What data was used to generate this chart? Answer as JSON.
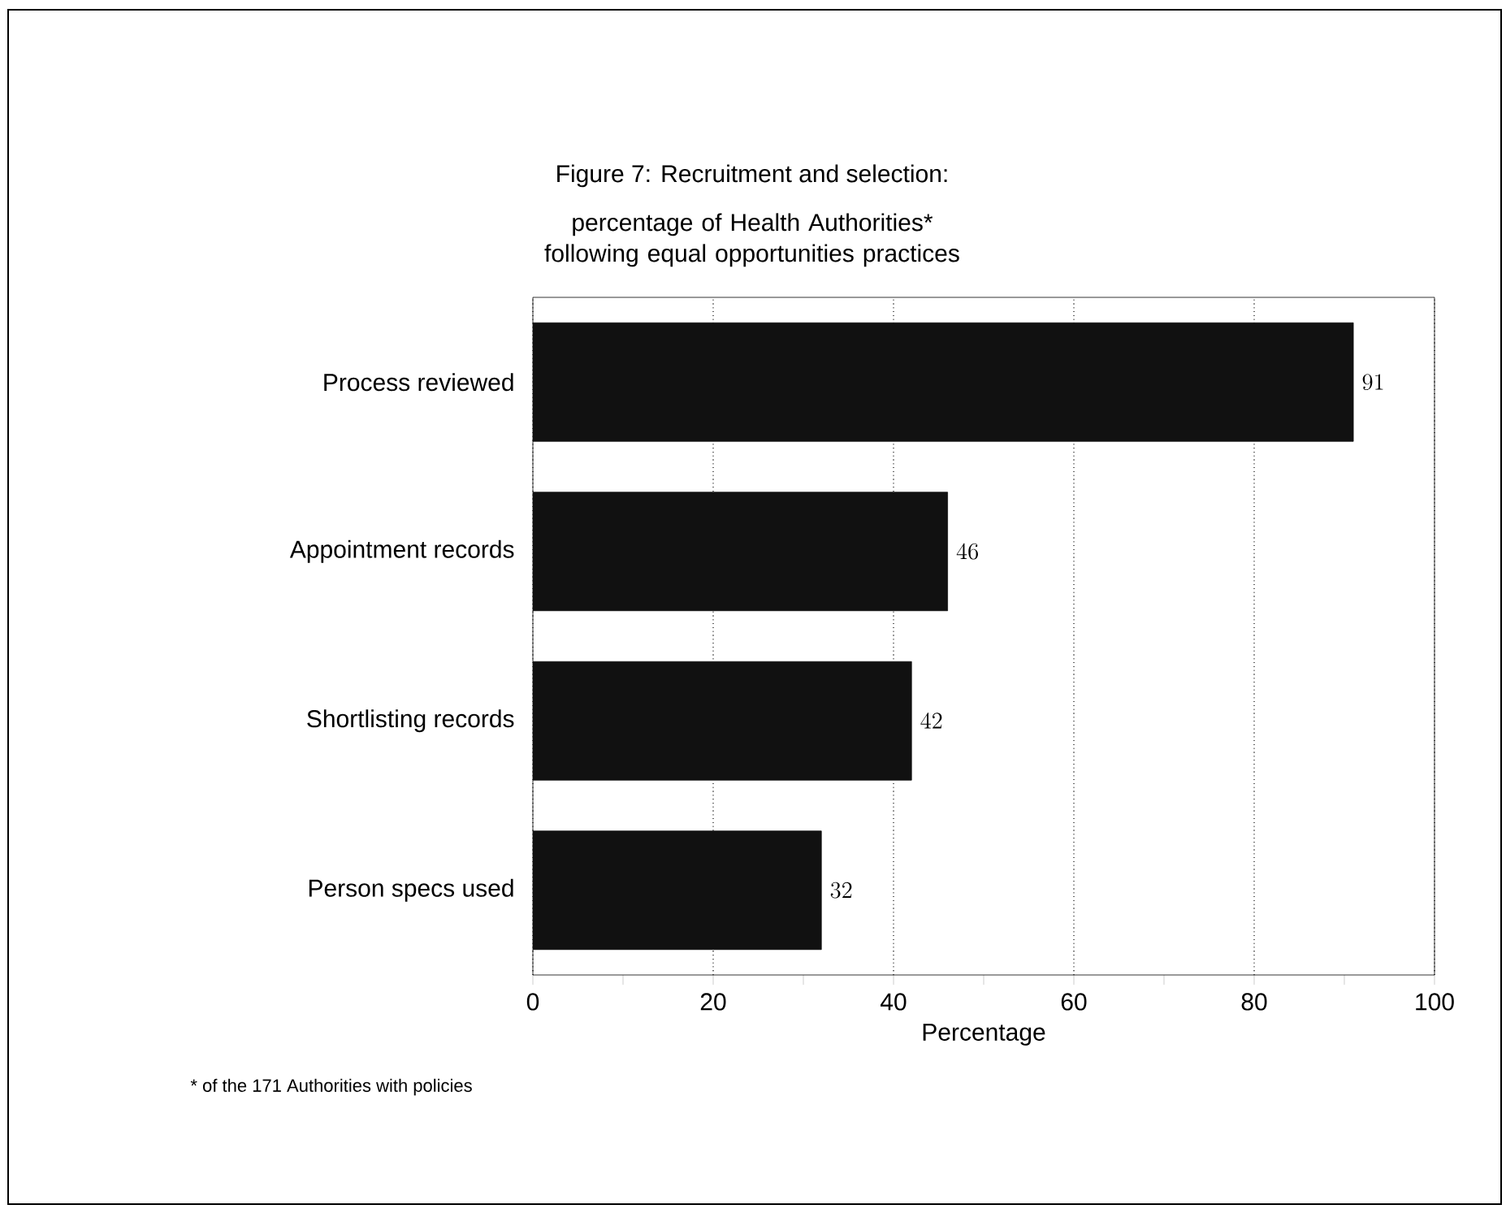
{
  "chart_data": {
    "type": "bar",
    "orientation": "horizontal",
    "title": "Figure 7: Recruitment and selection:",
    "subtitle": "percentage of Health Authorities* following equal opportunities practices",
    "categories": [
      "Process reviewed",
      "Appointment records",
      "Shortlisting records",
      "Person specs used"
    ],
    "values": [
      91,
      46,
      42,
      32
    ],
    "color": "#111111",
    "data_labels": true,
    "xlim": [
      0,
      100
    ],
    "xticks": [
      0,
      20,
      40,
      60,
      80,
      100
    ],
    "grid": "x",
    "xlabel": "Percentage",
    "annotations": [
      "* of the 171 Authorities with policies"
    ]
  }
}
